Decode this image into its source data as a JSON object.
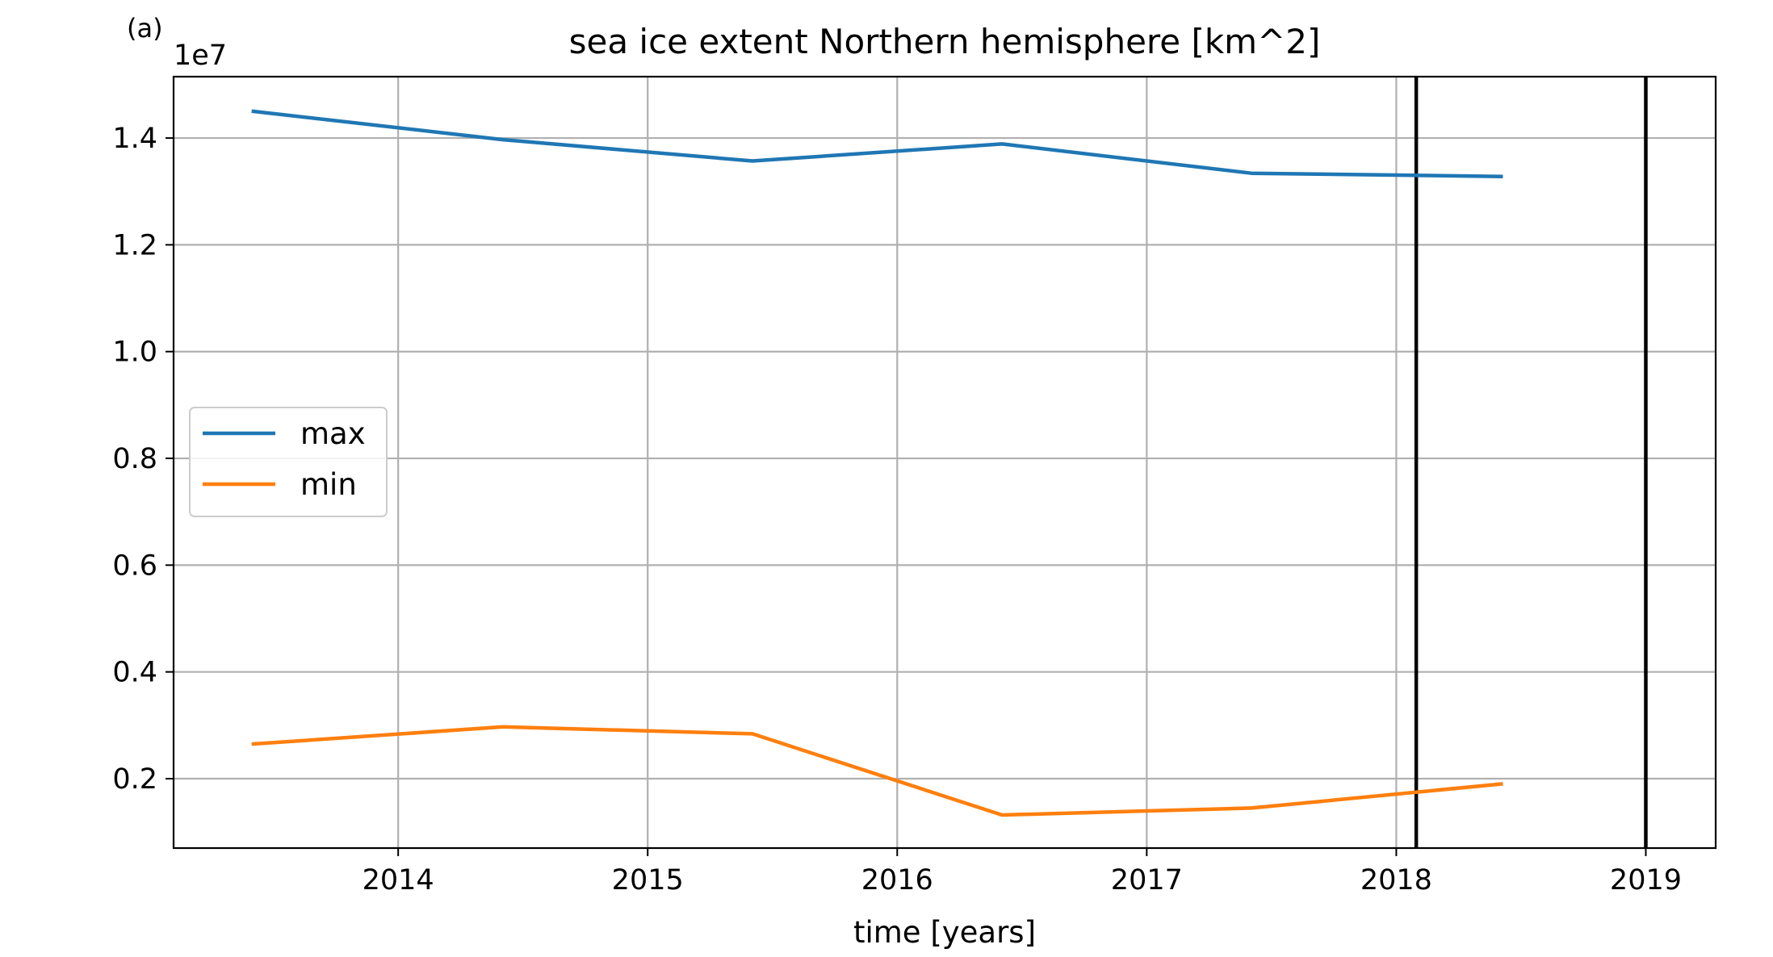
{
  "panel_label": "(a)",
  "chart_data": {
    "type": "line",
    "title": "sea ice extent Northern hemisphere [km^2]",
    "xlabel": "time [years]",
    "ylabel": "",
    "y_offset_label": "1e7",
    "y_scale_factor": 10000000,
    "xlim": [
      2013.1,
      2019.28
    ],
    "ylim": [
      0.07,
      1.515
    ],
    "x_ticks": [
      2014,
      2015,
      2016,
      2017,
      2018,
      2019
    ],
    "y_ticks": [
      0.2,
      0.4,
      0.6,
      0.8,
      1.0,
      1.2,
      1.4
    ],
    "y_tick_labels": [
      "0.2",
      "0.4",
      "0.6",
      "0.8",
      "1.0",
      "1.2",
      "1.4"
    ],
    "grid": true,
    "legend_position": "center-left",
    "x": [
      2013.42,
      2014.42,
      2015.42,
      2016.42,
      2017.42,
      2018.42
    ],
    "series": [
      {
        "name": "max",
        "color": "#1f77b4",
        "values": [
          1.45,
          1.397,
          1.357,
          1.389,
          1.334,
          1.328
        ]
      },
      {
        "name": "min",
        "color": "#ff7f0e",
        "values": [
          0.265,
          0.297,
          0.284,
          0.132,
          0.145,
          0.19
        ]
      }
    ],
    "vertical_lines": [
      {
        "x": 2018.08,
        "color": "#000000"
      },
      {
        "x": 2019.0,
        "color": "#000000"
      }
    ]
  }
}
